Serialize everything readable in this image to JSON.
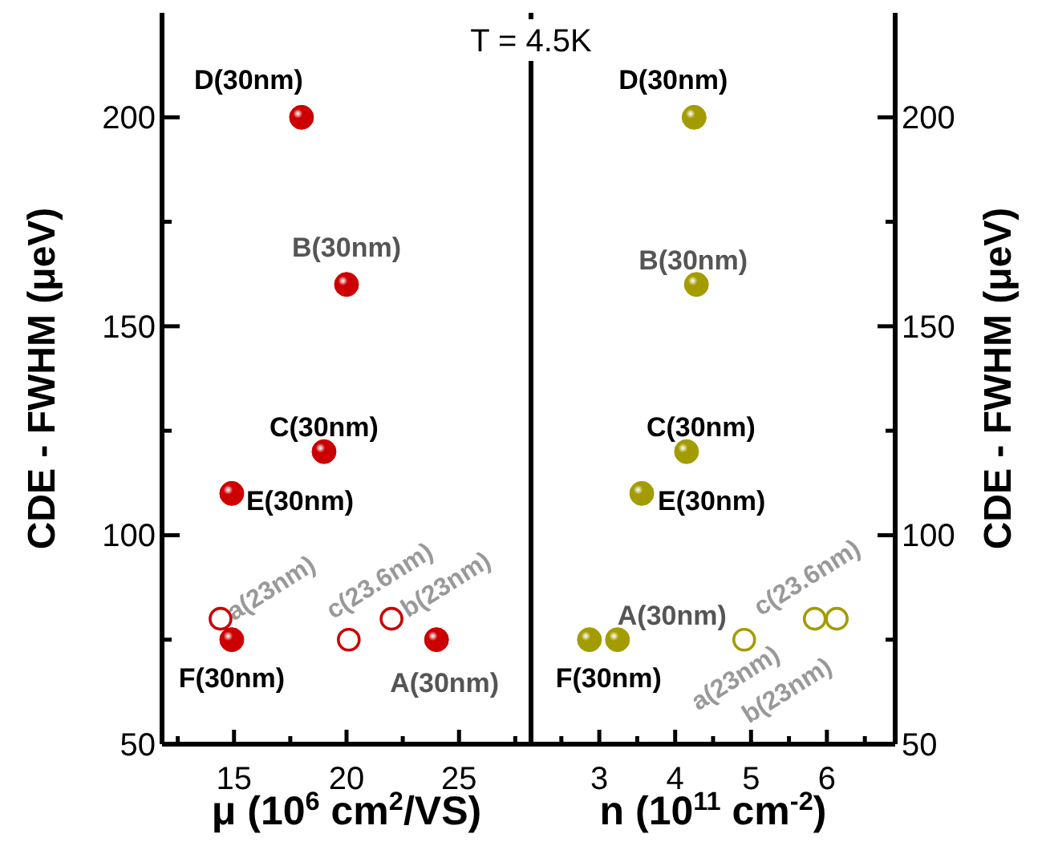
{
  "chart_data": [
    {
      "type": "scatter",
      "xlabel": "μ (10$^{6}$ cm$^{2}$/VS)",
      "ylabel": "CDE - FWHM (μeV)",
      "xlim": [
        11.8,
        28.2
      ],
      "xticks": [
        {
          "value": 12.5,
          "label": null
        },
        15,
        {
          "value": 17.5,
          "label": null
        },
        20,
        {
          "value": 22.5,
          "label": null
        },
        25,
        {
          "value": 27.5,
          "label": null
        }
      ],
      "ylim": [
        50,
        225
      ],
      "yticks": [
        50,
        {
          "value": 75,
          "label": null
        },
        100,
        {
          "value": 125,
          "label": null
        },
        150,
        {
          "value": 175,
          "label": null
        },
        200
      ],
      "marker": "circle",
      "series": [
        {
          "color": "#cc0000",
          "x": [
            18,
            20,
            19,
            14.9,
            14.9,
            24
          ],
          "values": [
            200,
            160,
            120,
            110,
            75,
            75
          ]
        },
        {
          "color": "#cc0000",
          "x": [
            14.4,
            20.1,
            22
          ],
          "values": [
            80,
            75,
            80
          ]
        }
      ],
      "annotations": [
        "T = 4.5K",
        {
          "text": "D(30nm)",
          "x": 18,
          "y": 200
        },
        {
          "text": "B(30nm)",
          "x": 20,
          "y": 160
        },
        {
          "text": "C(30nm)",
          "x": 19,
          "y": 120
        },
        {
          "text": "E(30nm)",
          "x": 14.9,
          "y": 110
        },
        {
          "text": "F(30nm)",
          "x": 14.9,
          "y": 75
        },
        {
          "text": "A(30nm)",
          "x": 24,
          "y": 75
        },
        {
          "text": "a(23nm)",
          "x": 14.4,
          "y": 80
        },
        {
          "text": "c(23.6nm)",
          "x": 20.1,
          "y": 75
        },
        {
          "text": "b(23nm)",
          "x": 22,
          "y": 80
        }
      ]
    },
    {
      "type": "scatter",
      "xlabel": "n (10$^{11}$ cm$^{-2}$)",
      "ylabel": "CDE - FWHM (μeV)",
      "xlim": [
        2.1,
        6.9
      ],
      "xticks": [
        {
          "value": 2.5,
          "label": null
        },
        3,
        {
          "value": 3.5,
          "label": null
        },
        4,
        {
          "value": 4.5,
          "label": null
        },
        5,
        {
          "value": 5.5,
          "label": null
        },
        6,
        {
          "value": 6.5,
          "label": null
        }
      ],
      "ylim": [
        50,
        225
      ],
      "yticks": [
        50,
        {
          "value": 75,
          "label": null
        },
        100,
        {
          "value": 125,
          "label": null
        },
        150,
        {
          "value": 175,
          "label": null
        },
        200
      ],
      "marker": "circle",
      "series": [
        {
          "color": "#a39c00",
          "x": [
            4.25,
            4.28,
            4.15,
            3.56,
            2.87,
            3.24
          ],
          "values": [
            200,
            160,
            120,
            110,
            75,
            75
          ]
        },
        {
          "color": "#a39c00",
          "x": [
            4.91,
            5.84,
            6.13
          ],
          "values": [
            75,
            80,
            80
          ]
        }
      ],
      "annotations": [
        {
          "text": "D(30nm)",
          "x": 4.25,
          "y": 200
        },
        {
          "text": "B(30nm)",
          "x": 4.28,
          "y": 160
        },
        {
          "text": "C(30nm)",
          "x": 4.15,
          "y": 120
        },
        {
          "text": "E(30nm)",
          "x": 3.56,
          "y": 110
        },
        {
          "text": "F(30nm)",
          "x": 2.87,
          "y": 75
        },
        {
          "text": "A(30nm)",
          "x": 3.24,
          "y": 75
        },
        {
          "text": "a(23nm)",
          "x": 4.91,
          "y": 75
        },
        {
          "text": "c(23.6nm)",
          "x": 5.84,
          "y": 80
        },
        {
          "text": "b(23nm)",
          "x": 6.13,
          "y": 80
        }
      ]
    }
  ]
}
